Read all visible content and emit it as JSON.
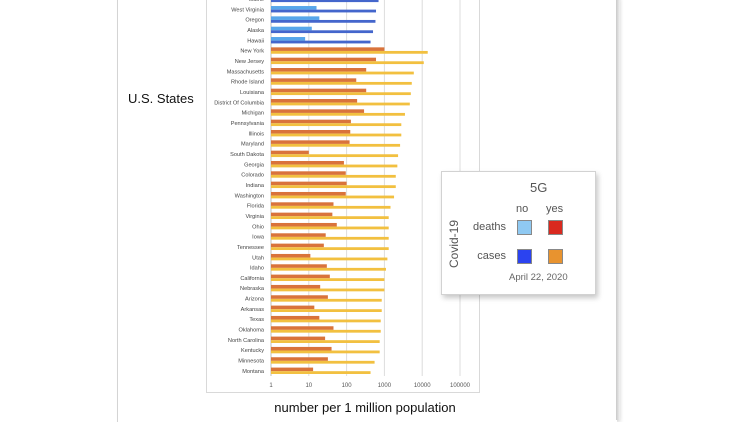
{
  "chart_data": {
    "type": "bar",
    "orientation": "horizontal",
    "scale": "log",
    "title": "",
    "xlabel": "number per 1 million population",
    "ylabel": "U.S. States",
    "xlim": [
      1,
      100000
    ],
    "x_ticks": [
      "1",
      "10",
      "100",
      "1000",
      "10000",
      "100000"
    ],
    "grid": true,
    "categories": [
      "Maine",
      "West Virginia",
      "Oregon",
      "Alaska",
      "Hawaii",
      "New York",
      "New Jersey",
      "Massachusetts",
      "Rhode Island",
      "Louisiana",
      "District Of Columbia",
      "Michigan",
      "Pennsylvania",
      "Illinois",
      "Maryland",
      "South Dakota",
      "Georgia",
      "Colorado",
      "Indiana",
      "Washington",
      "Florida",
      "Virginia",
      "Ohio",
      "Iowa",
      "Tennessee",
      "Utah",
      "Idaho",
      "California",
      "Nebraska",
      "Arizona",
      "Arkansas",
      "Texas",
      "Oklahoma",
      "North Carolina",
      "Kentucky",
      "Minnesota",
      "Montana"
    ],
    "five_g": [
      "no",
      "no",
      "no",
      "no",
      "no",
      "yes",
      "yes",
      "yes",
      "yes",
      "yes",
      "yes",
      "yes",
      "yes",
      "yes",
      "yes",
      "yes",
      "yes",
      "yes",
      "yes",
      "yes",
      "yes",
      "yes",
      "yes",
      "yes",
      "yes",
      "yes",
      "yes",
      "yes",
      "yes",
      "yes",
      "yes",
      "yes",
      "yes",
      "yes",
      "yes",
      "yes",
      "yes"
    ],
    "series": [
      {
        "name": "deaths",
        "values": [
          null,
          16,
          19,
          12,
          8,
          1000,
          600,
          330,
          180,
          330,
          190,
          290,
          130,
          125,
          120,
          10,
          85,
          95,
          100,
          95,
          45,
          42,
          55,
          28,
          25,
          11,
          30,
          36,
          20,
          32,
          14,
          19,
          45,
          27,
          40,
          32,
          13
        ]
      },
      {
        "name": "cases",
        "values": [
          700,
          600,
          580,
          500,
          430,
          14000,
          11000,
          6000,
          5300,
          5000,
          4700,
          3500,
          2800,
          2800,
          2600,
          2300,
          2200,
          2000,
          2000,
          1800,
          1450,
          1300,
          1300,
          1300,
          1300,
          1200,
          1100,
          1000,
          1000,
          850,
          850,
          800,
          800,
          750,
          750,
          550,
          430
        ]
      }
    ],
    "legend": {
      "title": "5G",
      "columns": [
        "no",
        "yes"
      ],
      "rows": [
        "deaths",
        "cases"
      ],
      "side_label": "Covid-19",
      "note": "April 22, 2020",
      "position": "right"
    },
    "colors": {
      "deaths_no": "#8fc9f2",
      "deaths_yes": "#d9291f",
      "cases_no": "#2b43f0",
      "cases_yes": "#e8932f",
      "bar_deaths_no": "#57a6ea",
      "bar_cases_no": "#4466cc",
      "bar_deaths_yes": "#d9733b",
      "bar_cases_yes": "#f2c040"
    }
  }
}
